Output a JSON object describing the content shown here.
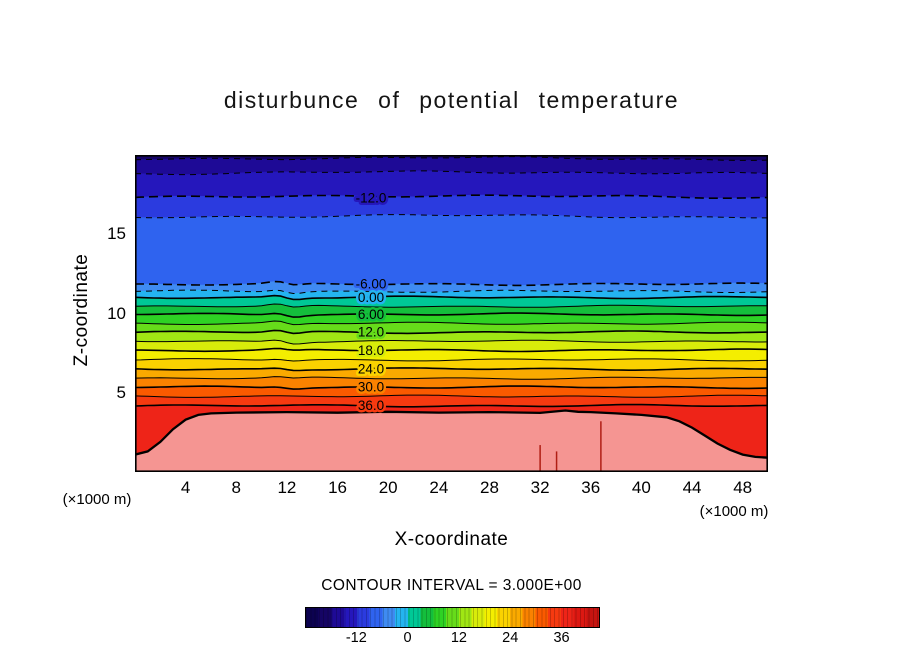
{
  "chart_data": {
    "type": "heatmap",
    "variant": "filled contour vertical cross-section",
    "title": "disturbunce of potential temperature",
    "xlabel": "X-coordinate",
    "ylabel": "Z-coordinate",
    "x_unit": "(×1000 m)",
    "y_unit": "(×1000 m)",
    "xlim": [
      0,
      50
    ],
    "ylim": [
      0,
      20
    ],
    "x_ticks": [
      4,
      8,
      12,
      16,
      20,
      24,
      28,
      32,
      36,
      40,
      44,
      48
    ],
    "y_ticks": [
      5,
      10,
      15
    ],
    "contour_interval": 3.0,
    "contour_interval_text": "CONTOUR INTERVAL = 3.000E+00",
    "labeled_contours": [
      "-12.0",
      "-6.00",
      "0.00",
      "6.00",
      "12.0",
      "18.0",
      "24.0",
      "30.0",
      "36.0"
    ],
    "levels": [
      {
        "value": -18,
        "z": 19.7,
        "dashed": true
      },
      {
        "value": -15,
        "z": 18.8,
        "dashed": true
      },
      {
        "value": -12,
        "z": 17.3,
        "dashed": true,
        "label": "-12.0"
      },
      {
        "value": -9,
        "z": 16.05,
        "dashed": true
      },
      {
        "value": -6,
        "z": 11.85,
        "dashed": true,
        "label": "-6.00"
      },
      {
        "value": -3,
        "z": 11.4,
        "dashed": true
      },
      {
        "value": 0,
        "z": 11.02,
        "dashed": false,
        "label": "0.00"
      },
      {
        "value": 3,
        "z": 10.45,
        "dashed": false
      },
      {
        "value": 6,
        "z": 9.95,
        "dashed": false,
        "label": "6.00"
      },
      {
        "value": 9,
        "z": 9.38,
        "dashed": false
      },
      {
        "value": 12,
        "z": 8.82,
        "dashed": false,
        "label": "12.0"
      },
      {
        "value": 15,
        "z": 8.25,
        "dashed": false
      },
      {
        "value": 18,
        "z": 7.68,
        "dashed": false,
        "label": "18.0"
      },
      {
        "value": 21,
        "z": 7.08,
        "dashed": false
      },
      {
        "value": 24,
        "z": 6.5,
        "dashed": false,
        "label": "24.0"
      },
      {
        "value": 27,
        "z": 5.92,
        "dashed": false
      },
      {
        "value": 30,
        "z": 5.35,
        "dashed": false,
        "label": "30.0"
      },
      {
        "value": 33,
        "z": 4.78,
        "dashed": false
      },
      {
        "value": 36,
        "z": 4.18,
        "dashed": false,
        "label": "36.0"
      }
    ],
    "surface_contour": {
      "value": 39,
      "points": [
        [
          0,
          1.1
        ],
        [
          1,
          1.3
        ],
        [
          2,
          1.9
        ],
        [
          3,
          2.7
        ],
        [
          4,
          3.3
        ],
        [
          5,
          3.6
        ],
        [
          6,
          3.7
        ],
        [
          8,
          3.75
        ],
        [
          12,
          3.78
        ],
        [
          16,
          3.74
        ],
        [
          20,
          3.8
        ],
        [
          24,
          3.75
        ],
        [
          28,
          3.78
        ],
        [
          32,
          3.73
        ],
        [
          34,
          3.88
        ],
        [
          35,
          3.8
        ],
        [
          36,
          3.78
        ],
        [
          38,
          3.7
        ],
        [
          40,
          3.6
        ],
        [
          42,
          3.45
        ],
        [
          43,
          3.2
        ],
        [
          44,
          2.8
        ],
        [
          45,
          2.3
        ],
        [
          46,
          1.8
        ],
        [
          47,
          1.4
        ],
        [
          48,
          1.1
        ],
        [
          49,
          0.95
        ],
        [
          50,
          0.9
        ]
      ]
    },
    "band_colors": [
      "#150464",
      "#1e0a96",
      "#2517bc",
      "#2b3bdf",
      "#2f63ef",
      "#3f8bf2",
      "#24b4f0",
      "#00c896",
      "#14be3c",
      "#2ed224",
      "#66dc1a",
      "#a0e614",
      "#d8ec0a",
      "#f4ee00",
      "#fad200",
      "#faaa00",
      "#fa8200",
      "#fa5a00",
      "#f63a10",
      "#ee2418",
      "#f59592"
    ],
    "artifacts": [
      {
        "x": 32.0,
        "z_top": 1.7
      },
      {
        "x": 33.3,
        "z_top": 1.3
      },
      {
        "x": 36.8,
        "z_top": 3.2
      }
    ],
    "colorbar": {
      "min": -24,
      "max": 45,
      "interval": 3,
      "ticks": [
        -12,
        0,
        12,
        24,
        36
      ],
      "colors": [
        "#0c0250",
        "#150464",
        "#1e0a96",
        "#2517bc",
        "#2b3bdf",
        "#2f63ef",
        "#3f8bf2",
        "#24b4f0",
        "#00c896",
        "#14be3c",
        "#2ed224",
        "#66dc1a",
        "#a0e614",
        "#d8ec0a",
        "#f4ee00",
        "#fad200",
        "#faaa00",
        "#fa8200",
        "#fa5a00",
        "#f63a10",
        "#ee2418",
        "#dc1812",
        "#c61410"
      ]
    }
  }
}
